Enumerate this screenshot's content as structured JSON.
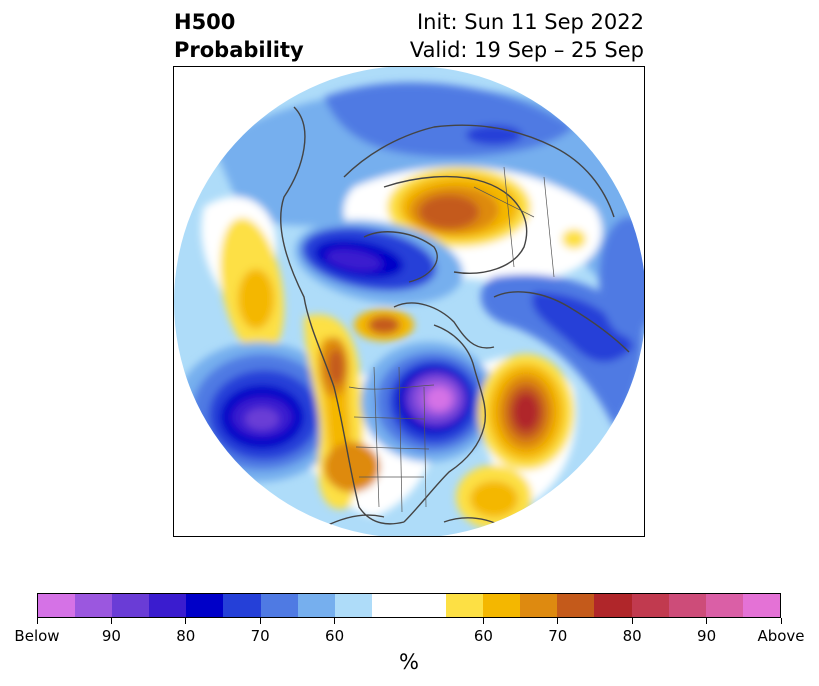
{
  "title": {
    "left_line1": "H500",
    "left_line2": "Probability",
    "right_line1": "Init: Sun 11 Sep 2022",
    "right_line2": "Valid: 19 Sep – 25 Sep"
  },
  "colorbar": {
    "colors": [
      "#d572e6",
      "#9b57df",
      "#6a3cd6",
      "#3a1ccf",
      "#0000c8",
      "#2540d8",
      "#4f7ae3",
      "#76afee",
      "#aedcf9",
      "#ffffff",
      "#fde044",
      "#f4b700",
      "#de8a10",
      "#c45a1b",
      "#b0262a",
      "#c13a4f",
      "#cd4c79",
      "#da5fa6",
      "#e472d6"
    ],
    "tick_labels": [
      "Below",
      "90",
      "80",
      "70",
      "60",
      "60",
      "70",
      "80",
      "90",
      "Above"
    ],
    "unit": "%"
  },
  "map": {
    "projection": "north-polar-stereographic",
    "variable": "500 hPa height anomaly probability",
    "features": [
      "coastlines",
      "country borders",
      "US state borders"
    ]
  }
}
